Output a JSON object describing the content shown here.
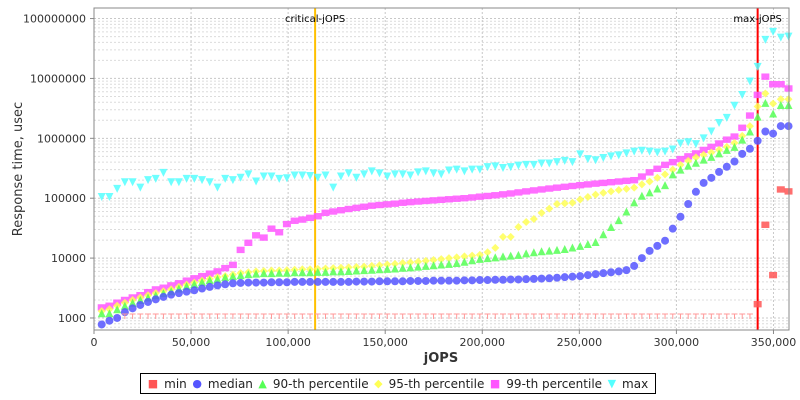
{
  "chart_data": {
    "type": "scatter",
    "xlabel": "jOPS",
    "ylabel": "Response time, usec",
    "y_scale": "log",
    "xlim": [
      0,
      358000
    ],
    "ylim": [
      630,
      150000000
    ],
    "grid": true,
    "legend_position": "bottom",
    "x_ticks": [
      "0",
      "50,000",
      "100,000",
      "150,000",
      "200,000",
      "250,000",
      "300,000",
      "350,000"
    ],
    "x_tick_values": [
      0,
      50000,
      100000,
      150000,
      200000,
      250000,
      300000,
      350000
    ],
    "y_ticks": [
      "1000",
      "10000",
      "100000",
      "1000000",
      "10000000",
      "100000000"
    ],
    "y_tick_values": [
      1000,
      10000,
      100000,
      1000000,
      10000000,
      100000000
    ],
    "annotations": [
      {
        "label": "critical-jOPS",
        "x": 113900,
        "color": "#ffc000"
      },
      {
        "label": "max-jOPS",
        "x": 341850,
        "color": "#ff0000"
      }
    ],
    "x": [
      3975,
      7950,
      11925,
      15900,
      19875,
      23850,
      27825,
      31800,
      35775,
      39750,
      43725,
      47700,
      51675,
      55650,
      59625,
      63600,
      67575,
      71550,
      75525,
      79500,
      83475,
      87450,
      91425,
      95400,
      99375,
      103350,
      107325,
      111300,
      115275,
      119250,
      123225,
      127200,
      131175,
      135150,
      139125,
      143100,
      147075,
      151050,
      155025,
      159000,
      162975,
      166950,
      170925,
      174900,
      178875,
      182850,
      186825,
      190800,
      194775,
      198750,
      202725,
      206700,
      210675,
      214650,
      218625,
      222600,
      226575,
      230550,
      234525,
      238500,
      242475,
      246450,
      250425,
      254400,
      258375,
      262350,
      266325,
      270300,
      274275,
      278250,
      282225,
      286200,
      290175,
      294150,
      298125,
      302100,
      306075,
      310050,
      314025,
      318000,
      321975,
      325950,
      329925,
      333900,
      337875,
      341850,
      345825,
      349800,
      353775,
      357750
    ],
    "series": [
      {
        "name": "min",
        "color": "#ff5555",
        "marker": "square",
        "values": [
          null,
          null,
          null,
          1000,
          1000,
          1000,
          1000,
          1000,
          1000,
          1000,
          1000,
          1000,
          1000,
          1000,
          1000,
          1000,
          1000,
          1000,
          1000,
          1000,
          1000,
          1000,
          1000,
          1000,
          1000,
          1000,
          1000,
          1000,
          1000,
          1000,
          1000,
          1000,
          1000,
          1000,
          1000,
          1000,
          1000,
          1000,
          1000,
          1000,
          1000,
          1000,
          1000,
          1000,
          1000,
          1000,
          1000,
          1000,
          1000,
          1000,
          1000,
          1000,
          1000,
          1000,
          1000,
          1000,
          1000,
          1000,
          1000,
          1000,
          1000,
          1000,
          1000,
          1000,
          1000,
          1000,
          1000,
          1000,
          1000,
          1000,
          1000,
          1000,
          1000,
          1000,
          1000,
          1000,
          1000,
          1000,
          1000,
          1000,
          1000,
          1000,
          1000,
          1000,
          1000,
          1700,
          36000,
          5200,
          140000,
          130000
        ]
      },
      {
        "name": "median",
        "color": "#5555ff",
        "marker": "circle",
        "values": [
          780,
          900,
          1000,
          1250,
          1450,
          1650,
          1850,
          2050,
          2250,
          2450,
          2600,
          2750,
          2900,
          3100,
          3300,
          3500,
          3650,
          3800,
          3850,
          3900,
          3900,
          3900,
          3950,
          3950,
          3950,
          4000,
          4000,
          4000,
          4000,
          4000,
          4000,
          4000,
          4000,
          4050,
          4050,
          4050,
          4100,
          4100,
          4100,
          4100,
          4150,
          4150,
          4150,
          4200,
          4200,
          4200,
          4200,
          4250,
          4250,
          4300,
          4300,
          4350,
          4350,
          4400,
          4400,
          4450,
          4500,
          4550,
          4600,
          4700,
          4800,
          4900,
          5000,
          5200,
          5400,
          5600,
          5800,
          6000,
          6300,
          7400,
          10000,
          13200,
          16000,
          19500,
          31000,
          49000,
          80000,
          128000,
          180000,
          219000,
          275000,
          335000,
          410000,
          550000,
          670000,
          910000,
          1300000,
          1200000,
          1600000,
          1600000
        ]
      },
      {
        "name": "90-th percentile",
        "color": "#55ff55",
        "marker": "triangle-up",
        "values": [
          1200,
          1200,
          1400,
          1600,
          1800,
          2000,
          2200,
          2400,
          2600,
          2800,
          3100,
          3400,
          3700,
          4000,
          4300,
          4500,
          4800,
          5000,
          5200,
          5400,
          5500,
          5600,
          5600,
          5700,
          5700,
          5800,
          5800,
          5800,
          5900,
          5900,
          6000,
          6000,
          6100,
          6200,
          6300,
          6400,
          6500,
          6600,
          6700,
          6900,
          7000,
          7200,
          7400,
          7600,
          7800,
          8000,
          8300,
          8700,
          9200,
          9700,
          10000,
          10300,
          10700,
          11000,
          11300,
          12000,
          12500,
          13000,
          13300,
          13700,
          14200,
          15000,
          16000,
          17200,
          18600,
          25000,
          33000,
          43000,
          60000,
          85000,
          110000,
          125000,
          145000,
          165000,
          250000,
          300000,
          350000,
          390000,
          440000,
          490000,
          560000,
          640000,
          720000,
          950000,
          1300000,
          2300000,
          3900000,
          2600000,
          3600000,
          3600000
        ]
      },
      {
        "name": "95-th percentile",
        "color": "#ffff55",
        "marker": "diamond",
        "values": [
          1300,
          1400,
          1600,
          1800,
          2000,
          2200,
          2400,
          2600,
          2800,
          3000,
          3300,
          3600,
          3900,
          4200,
          4500,
          4800,
          5000,
          5300,
          5600,
          5800,
          6000,
          6100,
          6200,
          6200,
          6300,
          6400,
          6500,
          6500,
          6600,
          6700,
          6800,
          6900,
          7000,
          7100,
          7200,
          7400,
          7600,
          7800,
          8000,
          8300,
          8500,
          8700,
          9000,
          9300,
          9600,
          10000,
          10300,
          10700,
          11000,
          11300,
          12500,
          14800,
          22600,
          22600,
          33000,
          40000,
          45000,
          57000,
          67000,
          80000,
          82000,
          84000,
          95000,
          105000,
          115000,
          123000,
          130000,
          137000,
          143000,
          150000,
          170000,
          190000,
          220000,
          250000,
          300000,
          360000,
          420000,
          480000,
          530000,
          580000,
          640000,
          720000,
          840000,
          1100000,
          1600000,
          3400000,
          5600000,
          3800000,
          4500000,
          4500000
        ]
      },
      {
        "name": "99-th percentile",
        "color": "#ff55ff",
        "marker": "square",
        "values": [
          1500,
          1600,
          1800,
          2000,
          2200,
          2400,
          2700,
          3000,
          3200,
          3500,
          3800,
          4200,
          4600,
          5000,
          5500,
          6000,
          6800,
          7700,
          13700,
          18000,
          24000,
          22000,
          31000,
          27000,
          37000,
          42000,
          44000,
          47000,
          50000,
          57000,
          60000,
          63000,
          66000,
          69000,
          72000,
          75000,
          77000,
          79000,
          81000,
          84000,
          86000,
          88000,
          90000,
          92000,
          94000,
          96000,
          98000,
          100000,
          103000,
          106000,
          109000,
          112000,
          116000,
          120000,
          125000,
          130000,
          135000,
          140000,
          145000,
          150000,
          155000,
          160000,
          165000,
          170000,
          175000,
          180000,
          185000,
          190000,
          195000,
          200000,
          230000,
          270000,
          310000,
          360000,
          400000,
          450000,
          500000,
          560000,
          640000,
          720000,
          820000,
          950000,
          1070000,
          1500000,
          2400000,
          5300000,
          10700000,
          8000000,
          8000000,
          6800000
        ]
      },
      {
        "name": "max",
        "color": "#55ffff",
        "marker": "triangle-down",
        "values": [
          105000,
          105000,
          143000,
          185000,
          185000,
          150000,
          200000,
          210000,
          265000,
          185000,
          185000,
          210000,
          210000,
          200000,
          185000,
          150000,
          210000,
          200000,
          220000,
          250000,
          190000,
          230000,
          230000,
          210000,
          215000,
          240000,
          240000,
          235000,
          220000,
          240000,
          150000,
          230000,
          260000,
          220000,
          250000,
          280000,
          260000,
          230000,
          250000,
          250000,
          240000,
          270000,
          280000,
          260000,
          250000,
          290000,
          300000,
          280000,
          300000,
          300000,
          330000,
          340000,
          320000,
          330000,
          350000,
          360000,
          360000,
          380000,
          380000,
          400000,
          420000,
          400000,
          540000,
          450000,
          430000,
          470000,
          500000,
          520000,
          560000,
          600000,
          620000,
          600000,
          580000,
          600000,
          650000,
          820000,
          860000,
          800000,
          1000000,
          1300000,
          1800000,
          2200000,
          3500000,
          5300000,
          8900000,
          15600000,
          44000000,
          60000000,
          48000000,
          50000000
        ]
      }
    ]
  }
}
